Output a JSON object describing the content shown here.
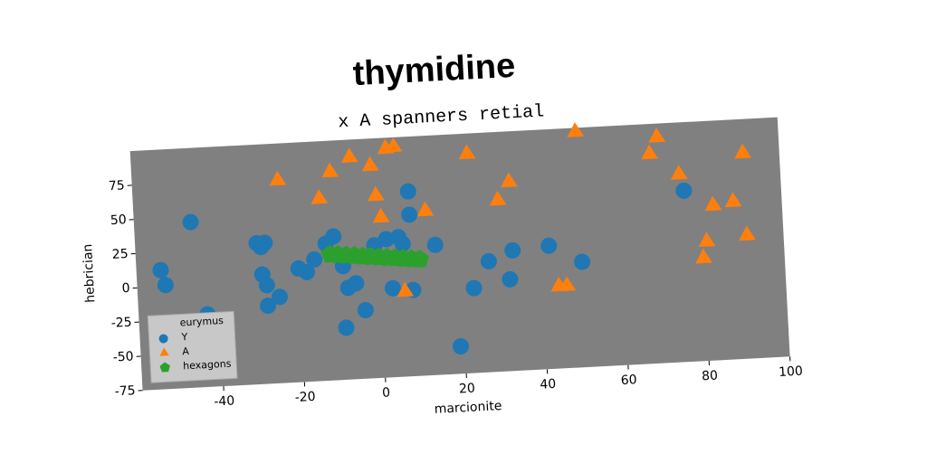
{
  "chart_data": {
    "type": "scatter",
    "title": "thymidine",
    "subtitle": "x A spanners retial",
    "xlabel": "marcionite",
    "ylabel": "hebrician",
    "xlim": [
      -60,
      100
    ],
    "ylim": [
      -75,
      100
    ],
    "xticks": [
      -40,
      -20,
      0,
      20,
      40,
      60,
      80,
      100
    ],
    "yticks": [
      -75,
      -50,
      -25,
      0,
      25,
      50,
      75
    ],
    "background": "#808080",
    "legend_title": "eurymus",
    "legend": "lower left",
    "series": [
      {
        "name": "Y",
        "color": "#1f77b4",
        "marker": "circle",
        "x": [
          -54,
          -53,
          -46,
          -43,
          -30,
          -29,
          -28,
          -29,
          -28,
          -28,
          -25,
          -20,
          -18,
          -16,
          -13,
          -11,
          -9,
          -8,
          -6,
          -4,
          -9,
          -1,
          2,
          5,
          6,
          3,
          8,
          8,
          8,
          14,
          19,
          23,
          27,
          32,
          33,
          42,
          50,
          76
        ],
        "y": [
          12,
          1,
          46,
          -22,
          28,
          25,
          28,
          5,
          -3,
          -18,
          -12,
          8,
          5,
          14,
          25,
          30,
          8,
          -8,
          -5,
          -25,
          -37,
          22,
          26,
          27,
          22,
          -10,
          -12,
          60,
          43,
          20,
          -55,
          -13,
          6,
          -8,
          13,
          15,
          2,
          50
        ]
      },
      {
        "name": "A",
        "color": "#ff7f0e",
        "marker": "triangle",
        "x": [
          -24,
          -14,
          -11,
          -6,
          -1,
          0,
          1,
          3,
          5,
          6,
          12,
          23,
          30,
          33,
          44,
          46,
          50,
          68,
          70,
          75,
          83,
          81,
          80,
          88,
          91,
          91
        ],
        "y": [
          73,
          58,
          77,
          87,
          80,
          58,
          42,
          92,
          93,
          -13,
          45,
          85,
          50,
          63,
          -15,
          -15,
          97,
          78,
          90,
          62,
          38,
          12,
          0,
          40,
          15,
          75
        ]
      },
      {
        "name": "hexagons",
        "color": "#2ca02c",
        "marker": "pentagon",
        "x": [
          -12,
          -10,
          -8,
          -6,
          -4,
          -2,
          0,
          2,
          4,
          6,
          8,
          10
        ],
        "y": [
          17,
          16.4,
          15.7,
          15.1,
          14.4,
          13.8,
          13.2,
          12.5,
          11.9,
          11.2,
          10.6,
          10
        ]
      }
    ]
  }
}
